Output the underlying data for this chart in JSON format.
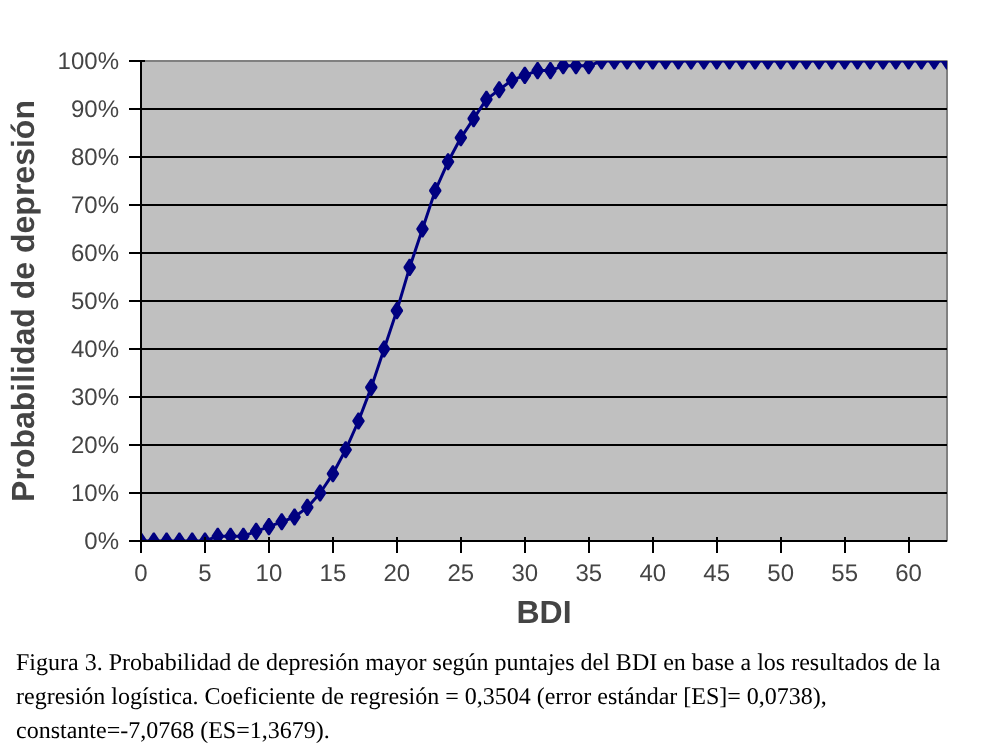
{
  "chart_data": {
    "type": "line",
    "xlabel": "BDI",
    "ylabel": "Probabilidad de depresión",
    "x": [
      0,
      1,
      2,
      3,
      4,
      5,
      6,
      7,
      8,
      9,
      10,
      11,
      12,
      13,
      14,
      15,
      16,
      17,
      18,
      19,
      20,
      21,
      22,
      23,
      24,
      25,
      26,
      27,
      28,
      29,
      30,
      31,
      32,
      33,
      34,
      35,
      36,
      37,
      38,
      39,
      40,
      41,
      42,
      43,
      44,
      45,
      46,
      47,
      48,
      49,
      50,
      51,
      52,
      53,
      54,
      55,
      56,
      57,
      58,
      59,
      60,
      61,
      62,
      63
    ],
    "series": [
      {
        "color": "#000080",
        "values": [
          0,
          0,
          0,
          0,
          0,
          0,
          1,
          1,
          1,
          2,
          3,
          4,
          5,
          7,
          10,
          14,
          19,
          25,
          32,
          40,
          48,
          57,
          65,
          73,
          79,
          84,
          88,
          92,
          94,
          96,
          97,
          98,
          98,
          99,
          99,
          99,
          100,
          100,
          100,
          100,
          100,
          100,
          100,
          100,
          100,
          100,
          100,
          100,
          100,
          100,
          100,
          100,
          100,
          100,
          100,
          100,
          100,
          100,
          100,
          100,
          100,
          100,
          100,
          100
        ]
      }
    ],
    "xlim": [
      0,
      63
    ],
    "ylim": [
      0,
      100
    ],
    "xticks": [
      0,
      5,
      10,
      15,
      20,
      25,
      30,
      35,
      40,
      45,
      50,
      55,
      60
    ],
    "yticks": [
      {
        "value": 0,
        "label": "0%"
      },
      {
        "value": 10,
        "label": "10%"
      },
      {
        "value": 20,
        "label": "20%"
      },
      {
        "value": 30,
        "label": "30%"
      },
      {
        "value": 40,
        "label": "40%"
      },
      {
        "value": 50,
        "label": "50%"
      },
      {
        "value": 60,
        "label": "60%"
      },
      {
        "value": 70,
        "label": "70%"
      },
      {
        "value": 80,
        "label": "80%"
      },
      {
        "value": 90,
        "label": "90%"
      },
      {
        "value": 100,
        "label": "100%"
      }
    ],
    "grid": "y",
    "marker": "diamond",
    "line_style": "solid",
    "annotations": [
      "Figura 3. Probabilidad de depresión mayor según puntajes del BDI en base a los resultados de la regresión logística. Coeficiente de regresión = 0,3504 (error estándar [ES]= 0,0738), constante=-7,0768 (ES=1,3679)."
    ]
  }
}
